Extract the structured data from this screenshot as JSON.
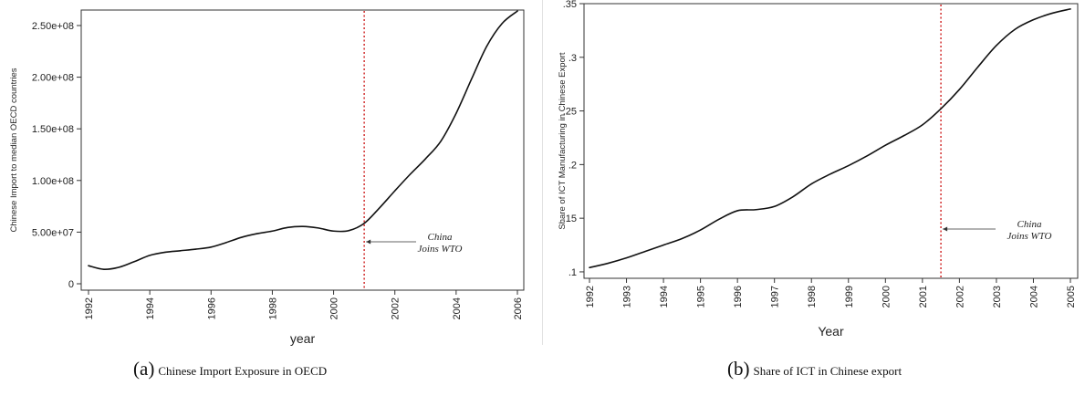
{
  "chart_data": [
    {
      "type": "line",
      "panel": "a",
      "caption_letter": "(a)",
      "caption": "Chinese Import Exposure in OECD",
      "xlabel": "year",
      "ylabel": "Chinese Import to median OECD countries",
      "xlim": [
        1992,
        2006
      ],
      "ylim": [
        0,
        265000000
      ],
      "x_ticks": [
        1992,
        1994,
        1996,
        1998,
        2000,
        2002,
        2004,
        2006
      ],
      "x_tick_labels": [
        "1992",
        "1994",
        "1996",
        "1998",
        "2000",
        "2002",
        "2004",
        "2006"
      ],
      "y_ticks": [
        0,
        50000000,
        100000000,
        150000000,
        200000000,
        250000000
      ],
      "y_tick_labels": [
        "0",
        "5.00e+07",
        "1.00e+08",
        "1.50e+08",
        "2.00e+08",
        "2.50e+08"
      ],
      "series": [
        {
          "x": [
            1992,
            1992.5,
            1993,
            1993.5,
            1994,
            1994.5,
            1995,
            1995.5,
            1996,
            1996.5,
            1997,
            1997.5,
            1998,
            1998.5,
            1999,
            1999.5,
            2000,
            2000.5,
            2001,
            2001.5,
            2002,
            2002.5,
            2003,
            2003.5,
            2004,
            2004.5,
            2005,
            2005.5,
            2006
          ],
          "y": [
            17500000,
            14000000,
            16000000,
            21500000,
            27500000,
            30500000,
            32000000,
            33500000,
            35500000,
            40000000,
            45000000,
            48500000,
            51000000,
            54500000,
            55500000,
            54000000,
            51000000,
            51500000,
            58500000,
            73500000,
            90000000,
            106000000,
            121000000,
            138000000,
            165000000,
            198000000,
            230000000,
            252000000,
            264000000
          ],
          "color": "#111111"
        }
      ],
      "vline": {
        "x": 2001,
        "color": "#d43a3a",
        "style": "dotted"
      },
      "annotation": {
        "lines": [
          "China",
          "Joins WTO"
        ],
        "arrow_to_x": 2001
      }
    },
    {
      "type": "line",
      "panel": "b",
      "caption_letter": "(b)",
      "caption": "Share of ICT in Chinese export",
      "xlabel": "Year",
      "ylabel": "Share of ICT Manufacturing in Chinese Export",
      "xlim": [
        1992,
        2005
      ],
      "ylim": [
        0.094,
        0.35
      ],
      "x_ticks": [
        1992,
        1993,
        1994,
        1995,
        1996,
        1997,
        1998,
        1999,
        2000,
        2001,
        2002,
        2003,
        2004,
        2005
      ],
      "x_tick_labels": [
        "1992",
        "1993",
        "1994",
        "1995",
        "1996",
        "1997",
        "1998",
        "1999",
        "2000",
        "2001",
        "2002",
        "2003",
        "2004",
        "2005"
      ],
      "y_ticks": [
        0.1,
        0.15,
        0.2,
        0.25,
        0.3,
        0.35
      ],
      "y_tick_labels": [
        ".1",
        ".15",
        ".2",
        ".25",
        ".3",
        ".35"
      ],
      "series": [
        {
          "x": [
            1992,
            1992.5,
            1993,
            1993.5,
            1994,
            1994.5,
            1995,
            1995.5,
            1996,
            1996.5,
            1997,
            1997.5,
            1998,
            1998.5,
            1999,
            1999.5,
            2000,
            2000.5,
            2001,
            2001.5,
            2002,
            2002.5,
            2003,
            2003.5,
            2004,
            2004.5,
            2005
          ],
          "y": [
            0.104,
            0.108,
            0.113,
            0.119,
            0.125,
            0.131,
            0.139,
            0.149,
            0.157,
            0.158,
            0.161,
            0.17,
            0.182,
            0.191,
            0.199,
            0.208,
            0.218,
            0.227,
            0.237,
            0.252,
            0.27,
            0.291,
            0.311,
            0.326,
            0.335,
            0.341,
            0.345
          ],
          "color": "#111111"
        }
      ],
      "vline": {
        "x": 2001.5,
        "color": "#d43a3a",
        "style": "dotted"
      },
      "annotation": {
        "lines": [
          "China",
          "Joins WTO"
        ],
        "arrow_to_x": 2001.5
      }
    }
  ]
}
